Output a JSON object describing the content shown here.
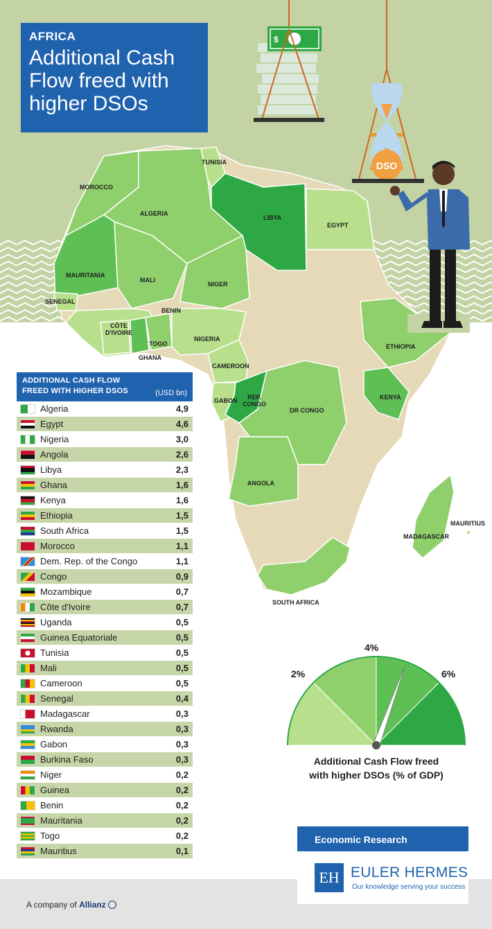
{
  "title": {
    "kicker": "AFRICA",
    "main": "Additional Cash Flow freed with higher DSOs"
  },
  "scale_label": "DSO",
  "cash_icon_glyph": "$",
  "map_labels": [
    {
      "key": "morocco",
      "text": "MOROCCO"
    },
    {
      "key": "tunisia",
      "text": "TUNISIA"
    },
    {
      "key": "algeria",
      "text": "ALGERIA"
    },
    {
      "key": "libya",
      "text": "LIBYA"
    },
    {
      "key": "egypt",
      "text": "EGYPT"
    },
    {
      "key": "mauritania",
      "text": "MAURITANIA"
    },
    {
      "key": "mali",
      "text": "MALI"
    },
    {
      "key": "niger",
      "text": "NIGER"
    },
    {
      "key": "senegal",
      "text": "SENEGAL"
    },
    {
      "key": "benin",
      "text": "BENIN"
    },
    {
      "key": "nigeria",
      "text": "NIGERIA"
    },
    {
      "key": "cote",
      "text": "CÔTE\nD'IVOIRE"
    },
    {
      "key": "togo",
      "text": "TOGO"
    },
    {
      "key": "ghana",
      "text": "GHANA"
    },
    {
      "key": "cameroon",
      "text": "CAMEROON"
    },
    {
      "key": "ethiopia",
      "text": "ETHIOPIA"
    },
    {
      "key": "gabon",
      "text": "GABON"
    },
    {
      "key": "repcongo",
      "text": "REP.\nCONGO"
    },
    {
      "key": "drcongo",
      "text": "DR CONGO"
    },
    {
      "key": "kenya",
      "text": "KENYA"
    },
    {
      "key": "angola",
      "text": "ANGOLA"
    },
    {
      "key": "mauritius",
      "text": "MAURITIUS"
    },
    {
      "key": "madagascar",
      "text": "MADAGASCAR"
    },
    {
      "key": "southafrica",
      "text": "SOUTH AFRICA"
    }
  ],
  "table": {
    "header_line1": "ADDITIONAL CASH FLOW",
    "header_line2": "FREED WITH HIGHER DSOS",
    "unit": "(USD bn)",
    "rows": [
      {
        "country": "Algeria",
        "value": "4,9"
      },
      {
        "country": "Egypt",
        "value": "4,6"
      },
      {
        "country": "Nigeria",
        "value": "3,0"
      },
      {
        "country": "Angola",
        "value": "2,6"
      },
      {
        "country": "Libya",
        "value": "2,3"
      },
      {
        "country": "Ghana",
        "value": "1,6"
      },
      {
        "country": "Kenya",
        "value": "1,6"
      },
      {
        "country": "Ethiopia",
        "value": "1,5"
      },
      {
        "country": "South Africa",
        "value": "1,5"
      },
      {
        "country": "Morocco",
        "value": "1,1"
      },
      {
        "country": "Dem. Rep. of the Congo",
        "value": "1,1"
      },
      {
        "country": "Congo",
        "value": "0,9"
      },
      {
        "country": "Mozambique",
        "value": "0,7"
      },
      {
        "country": "Côte d'Ivoire",
        "value": "0,7"
      },
      {
        "country": "Uganda",
        "value": "0,5"
      },
      {
        "country": "Guinea Equatoriale",
        "value": "0,5"
      },
      {
        "country": "Tunisia",
        "value": "0,5"
      },
      {
        "country": "Mali",
        "value": "0,5"
      },
      {
        "country": "Cameroon",
        "value": "0,5"
      },
      {
        "country": "Senegal",
        "value": "0,4"
      },
      {
        "country": "Madagascar",
        "value": "0,3"
      },
      {
        "country": "Rwanda",
        "value": "0,3"
      },
      {
        "country": "Gabon",
        "value": "0,3"
      },
      {
        "country": "Burkina Faso",
        "value": "0,3"
      },
      {
        "country": "Niger",
        "value": "0,2"
      },
      {
        "country": "Guinea",
        "value": "0,2"
      },
      {
        "country": "Benin",
        "value": "0,2"
      },
      {
        "country": "Mauritania",
        "value": "0,2"
      },
      {
        "country": "Togo",
        "value": "0,2"
      },
      {
        "country": "Mauritius",
        "value": "0,1"
      }
    ]
  },
  "gauge": {
    "ticks": [
      "2%",
      "4%",
      "6%"
    ],
    "caption_line1": "Additional Cash Flow freed",
    "caption_line2": "with higher DSOs  (% of GDP)",
    "colors": [
      "#b8e08c",
      "#8fd06c",
      "#5ebf54",
      "#2ea845"
    ]
  },
  "branding": {
    "economic_research": "Economic Research",
    "logo_letters": "EH",
    "name": "EULER HERMES",
    "tagline": "Our knowledge serving your success",
    "company_of": "A company of",
    "allianz": "Allianz"
  },
  "colors": {
    "blue": "#1f62ae",
    "band_green": "#c3d3a4",
    "row_green": "#c7d6a8",
    "land_beige": "#e6d9b8",
    "shade_light": "#b8e08c",
    "shade_mid": "#8fd06c",
    "shade_dark": "#5ebf54",
    "shade_darkest": "#2ea845"
  }
}
